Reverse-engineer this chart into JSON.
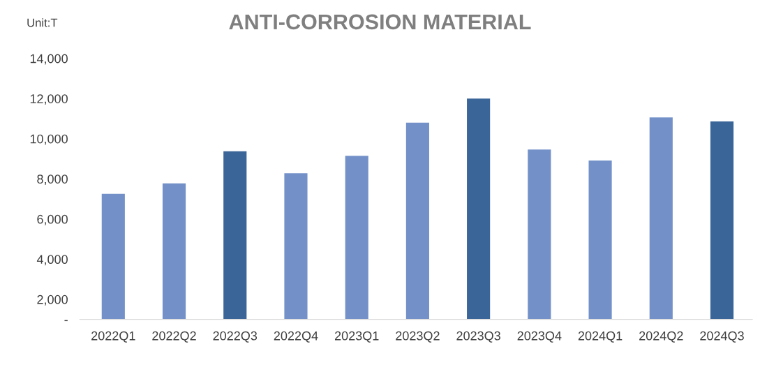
{
  "chart_data": {
    "type": "bar",
    "title": "ANTI-CORROSION MATERIAL",
    "annotations": [
      "Unit:T"
    ],
    "categories": [
      "2022Q1",
      "2022Q2",
      "2022Q3",
      "2022Q4",
      "2023Q1",
      "2023Q2",
      "2023Q3",
      "2023Q4",
      "2024Q1",
      "2024Q2",
      "2024Q3"
    ],
    "values": [
      7250,
      7775,
      9375,
      8275,
      9150,
      10800,
      12000,
      9460,
      8910,
      11060,
      10860
    ],
    "colors": [
      "#7391c8",
      "#7391c8",
      "#3a6598",
      "#7391c8",
      "#7391c8",
      "#7391c8",
      "#3a6598",
      "#7391c8",
      "#7391c8",
      "#7391c8",
      "#3a6598"
    ],
    "ylim": [
      1000,
      14000
    ],
    "yticks": [
      {
        "value": 1000,
        "label": "-"
      },
      {
        "value": 2000,
        "label": "2,000"
      },
      {
        "value": 4000,
        "label": "4,000"
      },
      {
        "value": 6000,
        "label": "6,000"
      },
      {
        "value": 8000,
        "label": "8,000"
      },
      {
        "value": 10000,
        "label": "10,000"
      },
      {
        "value": 12000,
        "label": "12,000"
      },
      {
        "value": 14000,
        "label": "14,000"
      }
    ],
    "grid": false
  }
}
